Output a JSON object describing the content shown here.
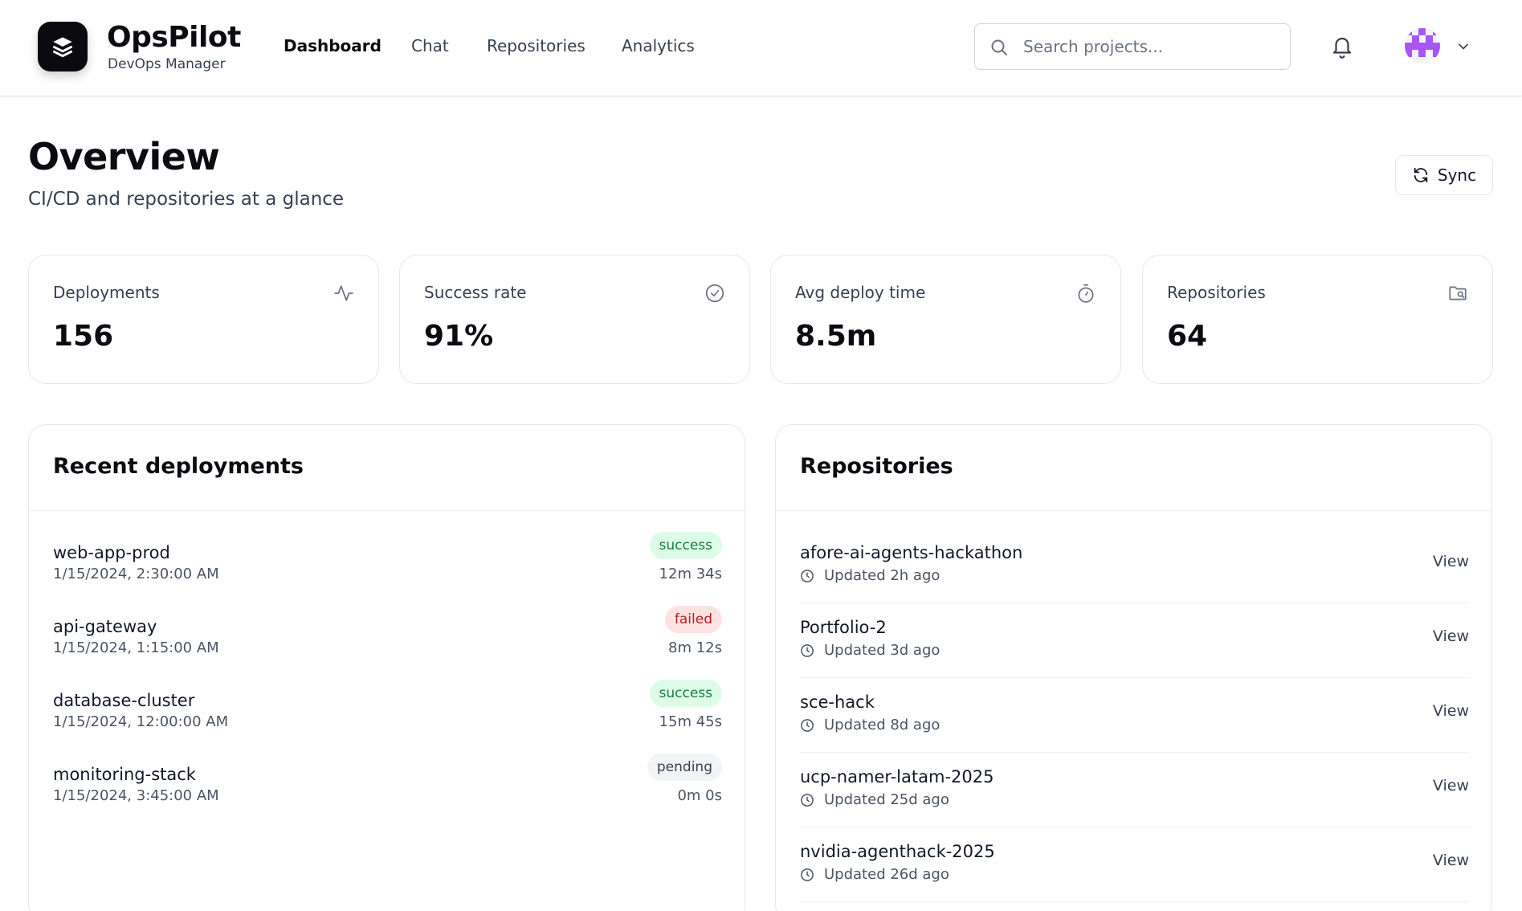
{
  "brand": {
    "name": "OpsPilot",
    "subtitle": "DevOps Manager"
  },
  "nav": [
    {
      "label": "Dashboard",
      "active": true
    },
    {
      "label": "Chat",
      "active": false
    },
    {
      "label": "Repositories",
      "active": false
    },
    {
      "label": "Analytics",
      "active": false
    }
  ],
  "search": {
    "placeholder": "Search projects...",
    "value": ""
  },
  "page": {
    "title": "Overview",
    "subtitle": "CI/CD and repositories at a glance",
    "sync_label": "Sync"
  },
  "stats": [
    {
      "label": "Deployments",
      "value": "156",
      "icon": "activity-icon"
    },
    {
      "label": "Success rate",
      "value": "91%",
      "icon": "check-circle-icon"
    },
    {
      "label": "Avg deploy time",
      "value": "8.5m",
      "icon": "timer-icon"
    },
    {
      "label": "Repositories",
      "value": "64",
      "icon": "folder-search-icon"
    }
  ],
  "deployments": {
    "title": "Recent deployments",
    "items": [
      {
        "name": "web-app-prod",
        "time": "1/15/2024, 2:30:00 AM",
        "status": "success",
        "duration": "12m 34s"
      },
      {
        "name": "api-gateway",
        "time": "1/15/2024, 1:15:00 AM",
        "status": "failed",
        "duration": "8m 12s"
      },
      {
        "name": "database-cluster",
        "time": "1/15/2024, 12:00:00 AM",
        "status": "success",
        "duration": "15m 45s"
      },
      {
        "name": "monitoring-stack",
        "time": "1/15/2024, 3:45:00 AM",
        "status": "pending",
        "duration": "0m 0s"
      }
    ]
  },
  "repositories": {
    "title": "Repositories",
    "view_label": "View",
    "items": [
      {
        "name": "afore-ai-agents-hackathon",
        "updated": "Updated 2h ago"
      },
      {
        "name": "Portfolio-2",
        "updated": "Updated 3d ago"
      },
      {
        "name": "sce-hack",
        "updated": "Updated 8d ago"
      },
      {
        "name": "ucp-namer-latam-2025",
        "updated": "Updated 25d ago"
      },
      {
        "name": "nvidia-agenthack-2025",
        "updated": "Updated 26d ago"
      }
    ]
  },
  "colors": {
    "success": "#15803d",
    "failed": "#b91c1c",
    "pending": "#374151",
    "accent": "#0b0b12",
    "avatar": "#a855f7"
  }
}
